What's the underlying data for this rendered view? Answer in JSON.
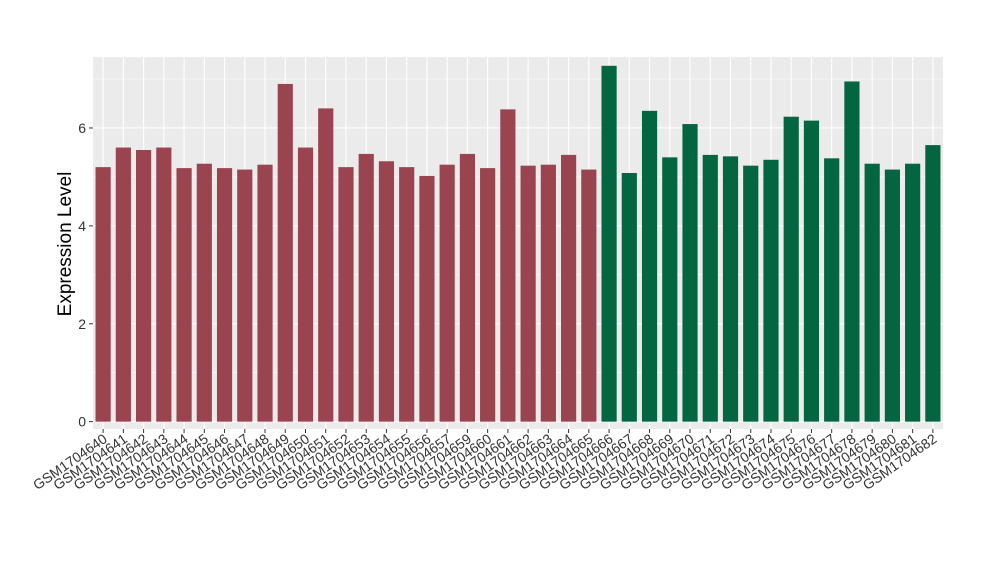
{
  "chart_data": {
    "type": "bar",
    "ylabel": "Expression Level",
    "xlabel": "",
    "ylim": [
      -0.15,
      7.45
    ],
    "yticks": [
      0,
      2,
      4,
      6
    ],
    "grid": true,
    "categories": [
      "GSM1704640",
      "GSM1704641",
      "GSM1704642",
      "GSM1704643",
      "GSM1704644",
      "GSM1704645",
      "GSM1704646",
      "GSM1704647",
      "GSM1704648",
      "GSM1704649",
      "GSM1704650",
      "GSM1704651",
      "GSM1704652",
      "GSM1704653",
      "GSM1704654",
      "GSM1704655",
      "GSM1704656",
      "GSM1704657",
      "GSM1704659",
      "GSM1704660",
      "GSM1704661",
      "GSM1704662",
      "GSM1704663",
      "GSM1704664",
      "GSM1704665",
      "GSM1704666",
      "GSM1704667",
      "GSM1704668",
      "GSM1704669",
      "GSM1704670",
      "GSM1704671",
      "GSM1704672",
      "GSM1704673",
      "GSM1704674",
      "GSM1704675",
      "GSM1704676",
      "GSM1704677",
      "GSM1704678",
      "GSM1704679",
      "GSM1704680",
      "GSM1704681",
      "GSM1704682"
    ],
    "values": [
      5.2,
      5.6,
      5.55,
      5.6,
      5.18,
      5.27,
      5.18,
      5.15,
      5.25,
      6.9,
      5.6,
      6.4,
      5.2,
      5.47,
      5.32,
      5.2,
      5.02,
      5.25,
      5.47,
      5.18,
      6.38,
      5.23,
      5.25,
      5.45,
      5.15,
      7.27,
      5.08,
      6.35,
      5.4,
      6.08,
      5.45,
      5.42,
      5.23,
      5.35,
      6.23,
      6.15,
      5.38,
      6.95,
      5.27,
      5.15,
      5.27,
      5.65
    ],
    "groups": [
      {
        "color": "#9a4450",
        "count": 25
      },
      {
        "color": "#036641",
        "count": 17
      }
    ],
    "colors": {
      "panel_background": "#ebebeb",
      "grid": "#ffffff"
    }
  }
}
